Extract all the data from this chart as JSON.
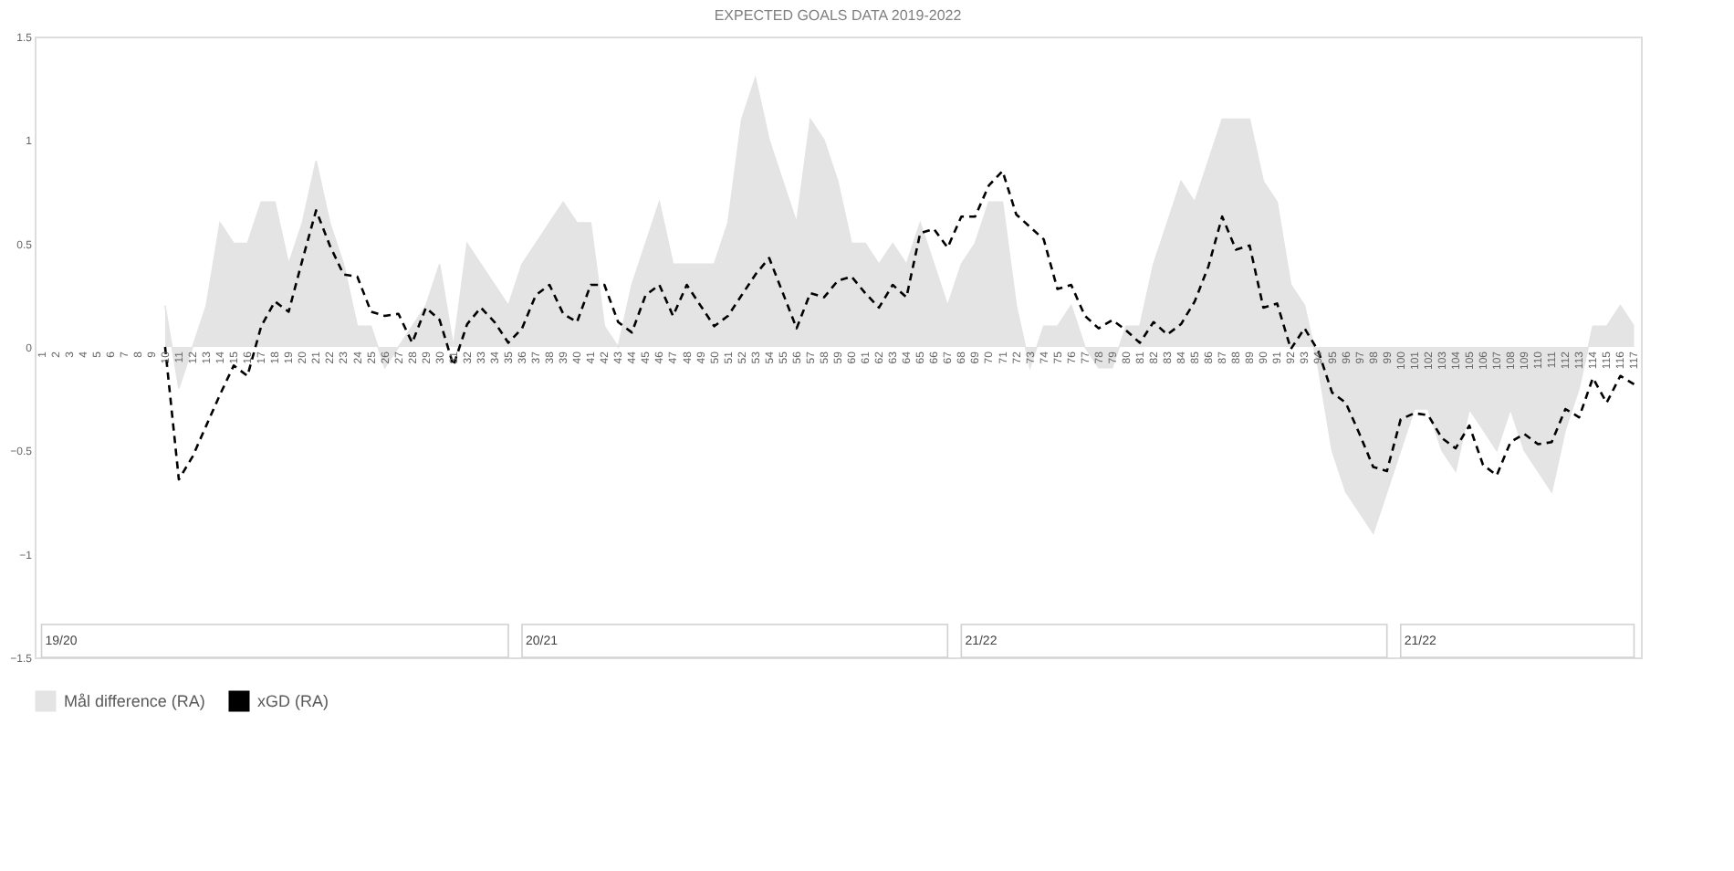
{
  "chart_data": {
    "type": "area",
    "title": "EXPECTED GOALS DATA 2019-2022",
    "categories": [
      "1",
      "2",
      "3",
      "4",
      "5",
      "6",
      "7",
      "8",
      "9",
      "10",
      "11",
      "12",
      "13",
      "14",
      "15",
      "16",
      "17",
      "18",
      "19",
      "20",
      "21",
      "22",
      "23",
      "24",
      "25",
      "26",
      "27",
      "28",
      "29",
      "30",
      "31",
      "32",
      "33",
      "34",
      "35",
      "36",
      "37",
      "38",
      "39",
      "40",
      "41",
      "42",
      "43",
      "44",
      "45",
      "46",
      "47",
      "48",
      "49",
      "50",
      "51",
      "52",
      "53",
      "54",
      "55",
      "56",
      "57",
      "58",
      "59",
      "60",
      "61",
      "62",
      "63",
      "64",
      "65",
      "66",
      "67",
      "68",
      "69",
      "70",
      "71",
      "72",
      "73",
      "74",
      "75",
      "76",
      "77",
      "78",
      "79",
      "80",
      "81",
      "82",
      "83",
      "84",
      "85",
      "86",
      "87",
      "88",
      "89",
      "90",
      "91",
      "92",
      "93",
      "94",
      "95",
      "96",
      "97",
      "98",
      "99",
      "100",
      "101",
      "102",
      "103",
      "104",
      "105",
      "106",
      "107",
      "108",
      "109",
      "110",
      "111",
      "112",
      "113",
      "114",
      "115",
      "116",
      "117"
    ],
    "series": [
      {
        "name": "Mål difference (RA)",
        "color": "#e4e4e4",
        "values": [
          null,
          null,
          null,
          null,
          null,
          null,
          null,
          null,
          null,
          0.2,
          -0.2,
          0,
          0.2,
          0.6,
          0.5,
          0.5,
          0.7,
          0.7,
          0.4,
          0.6,
          0.9,
          0.6,
          0.4,
          0.1,
          0.1,
          -0.1,
          0,
          0.1,
          0.2,
          0.4,
          0,
          0.5,
          0.4,
          0.3,
          0.2,
          0.4,
          0.5,
          0.6,
          0.7,
          0.6,
          0.6,
          0.1,
          0,
          0.3,
          0.5,
          0.7,
          0.4,
          0.4,
          0.4,
          0.4,
          0.6,
          1.1,
          1.3,
          1.0,
          0.8,
          0.6,
          1.1,
          1.0,
          0.8,
          0.5,
          0.5,
          0.4,
          0.5,
          0.4,
          0.6,
          0.4,
          0.2,
          0.4,
          0.5,
          0.7,
          0.7,
          0.2,
          -0.1,
          0.1,
          0.1,
          0.2,
          0,
          -0.1,
          -0.1,
          0.1,
          0.1,
          0.4,
          0.6,
          0.8,
          0.7,
          0.9,
          1.1,
          1.1,
          1.1,
          0.8,
          0.7,
          0.3,
          0.2,
          -0.1,
          -0.5,
          -0.7,
          -0.8,
          -0.9,
          -0.7,
          -0.5,
          -0.3,
          -0.3,
          -0.5,
          -0.6,
          -0.3,
          -0.4,
          -0.5,
          -0.3,
          -0.5,
          -0.6,
          -0.7,
          -0.4,
          -0.2,
          0.1,
          0.1,
          0.2,
          0.1
        ]
      },
      {
        "name": "xGD (RA)",
        "type": "line",
        "line_style": "dashed",
        "color": "#000000",
        "values": [
          null,
          null,
          null,
          null,
          null,
          null,
          null,
          null,
          null,
          0,
          -0.64,
          -0.53,
          -0.38,
          -0.23,
          -0.09,
          -0.14,
          0.1,
          0.22,
          0.17,
          0.42,
          0.66,
          0.49,
          0.35,
          0.34,
          0.17,
          0.15,
          0.16,
          0.02,
          0.19,
          0.13,
          -0.09,
          0.11,
          0.19,
          0.12,
          0.02,
          0.09,
          0.25,
          0.3,
          0.16,
          0.12,
          0.3,
          0.3,
          0.12,
          0.07,
          0.25,
          0.3,
          0.15,
          0.3,
          0.2,
          0.1,
          0.15,
          0.25,
          0.35,
          0.43,
          0.26,
          0.09,
          0.26,
          0.24,
          0.32,
          0.34,
          0.26,
          0.19,
          0.3,
          0.24,
          0.55,
          0.57,
          0.48,
          0.63,
          0.63,
          0.78,
          0.85,
          0.64,
          0.58,
          0.52,
          0.28,
          0.3,
          0.15,
          0.09,
          0.13,
          0.08,
          0.02,
          0.12,
          0.06,
          0.11,
          0.22,
          0.39,
          0.63,
          0.47,
          0.49,
          0.19,
          0.21,
          -0.01,
          0.09,
          -0.02,
          -0.22,
          -0.27,
          -0.42,
          -0.58,
          -0.6,
          -0.35,
          -0.32,
          -0.33,
          -0.44,
          -0.49,
          -0.38,
          -0.57,
          -0.62,
          -0.46,
          -0.42,
          -0.47,
          -0.46,
          -0.3,
          -0.34,
          -0.15,
          -0.27,
          -0.14,
          -0.18
        ]
      }
    ],
    "ylim": [
      -1.5,
      1.5
    ],
    "yticks": [
      -1.5,
      -1,
      -0.5,
      0,
      0.5,
      1,
      1.5
    ],
    "legend": "bottom",
    "bands": [
      {
        "axis": "x",
        "from": "1",
        "to": "35",
        "label": "19/20"
      },
      {
        "axis": "x",
        "from": "36",
        "to": "67",
        "label": "20/21"
      },
      {
        "axis": "x",
        "from": "68",
        "to": "99",
        "label": "21/22"
      },
      {
        "axis": "x",
        "from": "100",
        "to": "117",
        "label": "21/22"
      }
    ]
  }
}
